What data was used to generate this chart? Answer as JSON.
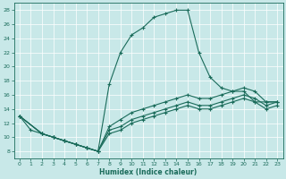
{
  "xlabel": "Humidex (Indice chaleur)",
  "background_color": "#c8e8e8",
  "line_color": "#1a6b5a",
  "xlim": [
    -0.5,
    23.5
  ],
  "ylim": [
    7,
    29
  ],
  "yticks": [
    8,
    10,
    12,
    14,
    16,
    18,
    20,
    22,
    24,
    26,
    28
  ],
  "xticks": [
    0,
    1,
    2,
    3,
    4,
    5,
    6,
    7,
    8,
    9,
    10,
    11,
    12,
    13,
    14,
    15,
    16,
    17,
    18,
    19,
    20,
    21,
    22,
    23
  ],
  "line1_x": [
    0,
    1,
    2,
    3,
    4,
    5,
    6,
    7,
    8,
    9,
    10,
    11,
    12,
    13,
    14,
    15,
    16,
    17,
    18,
    19,
    20,
    21,
    22,
    23
  ],
  "line1_y": [
    13,
    11,
    10.5,
    10.0,
    9.5,
    9.0,
    8.5,
    8.0,
    17.5,
    22,
    24.5,
    25.5,
    27,
    27.5,
    28,
    28,
    22,
    18.5,
    17,
    16.5,
    16.5,
    15,
    15,
    15
  ],
  "line2_x": [
    0,
    2,
    3,
    4,
    5,
    6,
    7,
    8,
    9,
    10,
    11,
    12,
    13,
    14,
    15,
    16,
    17,
    18,
    19,
    20,
    21,
    22,
    23
  ],
  "line2_y": [
    13,
    10.5,
    10.0,
    9.5,
    9.0,
    8.5,
    8.0,
    11.5,
    12.5,
    13.5,
    14.0,
    14.5,
    15.0,
    15.5,
    16.0,
    15.5,
    15.5,
    16.0,
    16.5,
    17.0,
    16.5,
    15.0,
    15.0
  ],
  "line3_x": [
    0,
    2,
    3,
    4,
    5,
    6,
    7,
    8,
    9,
    10,
    11,
    12,
    13,
    14,
    15,
    16,
    17,
    18,
    19,
    20,
    21,
    22,
    23
  ],
  "line3_y": [
    13,
    10.5,
    10.0,
    9.5,
    9.0,
    8.5,
    8.0,
    11.0,
    11.5,
    12.5,
    13.0,
    13.5,
    14.0,
    14.5,
    15.0,
    14.5,
    14.5,
    15.0,
    15.5,
    16.0,
    15.5,
    14.5,
    15.0
  ],
  "line4_x": [
    0,
    2,
    3,
    4,
    5,
    6,
    7,
    8,
    9,
    10,
    11,
    12,
    13,
    14,
    15,
    16,
    17,
    18,
    19,
    20,
    21,
    22,
    23
  ],
  "line4_y": [
    13,
    10.5,
    10.0,
    9.5,
    9.0,
    8.5,
    8.0,
    10.5,
    11.0,
    12.0,
    12.5,
    13.0,
    13.5,
    14.0,
    14.5,
    14.0,
    14.0,
    14.5,
    15.0,
    15.5,
    15.0,
    14.0,
    14.5
  ],
  "figsize": [
    3.2,
    2.0
  ],
  "dpi": 100
}
